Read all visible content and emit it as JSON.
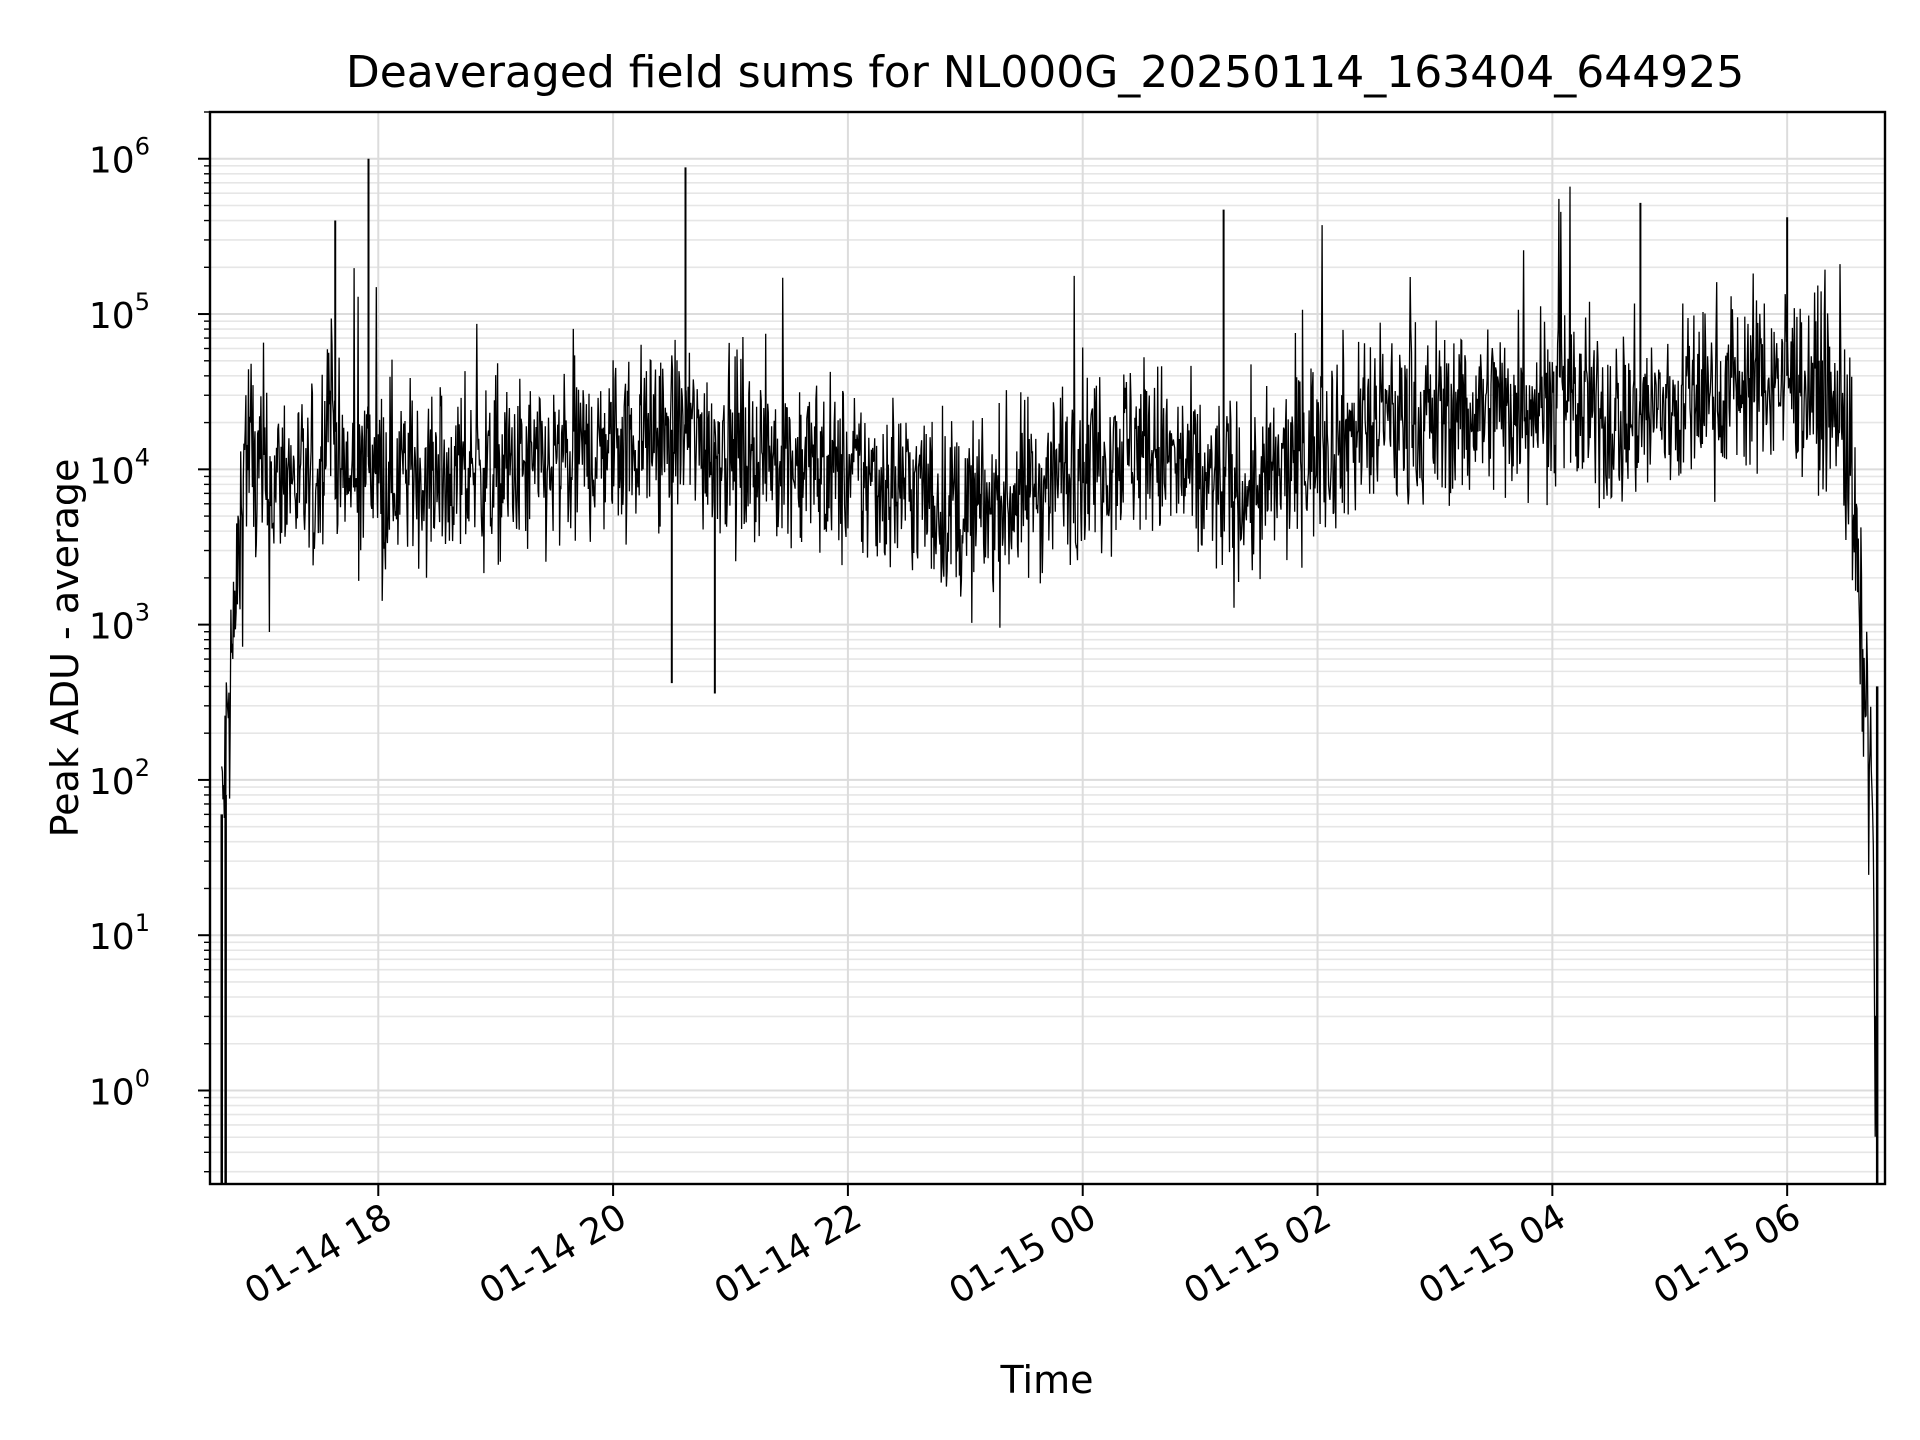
{
  "chart_data": {
    "type": "line",
    "title": "Deaveraged field sums for NL000G_20250114_163404_644925",
    "xlabel": "Time",
    "ylabel": "Peak ADU - average",
    "yscale": "log",
    "xlim": [
      "2025-01-14 16:34",
      "2025-01-15 06:50"
    ],
    "ylim": [
      0.25,
      2000000
    ],
    "grid": true,
    "line_color": "#000000",
    "x_ticks": [
      {
        "label": "01-14 18",
        "time": "2025-01-14 18:00"
      },
      {
        "label": "01-14 20",
        "time": "2025-01-14 20:00"
      },
      {
        "label": "01-14 22",
        "time": "2025-01-14 22:00"
      },
      {
        "label": "01-15 00",
        "time": "2025-01-15 00:00"
      },
      {
        "label": "01-15 02",
        "time": "2025-01-15 02:00"
      },
      {
        "label": "01-15 04",
        "time": "2025-01-15 04:00"
      },
      {
        "label": "01-15 06",
        "time": "2025-01-15 06:00"
      }
    ],
    "y_ticks": [
      {
        "base": "10",
        "exp": "0",
        "value": 1
      },
      {
        "base": "10",
        "exp": "1",
        "value": 10
      },
      {
        "base": "10",
        "exp": "2",
        "value": 100
      },
      {
        "base": "10",
        "exp": "3",
        "value": 1000
      },
      {
        "base": "10",
        "exp": "4",
        "value": 10000
      },
      {
        "base": "10",
        "exp": "5",
        "value": 100000
      },
      {
        "base": "10",
        "exp": "6",
        "value": 1000000
      }
    ],
    "series": [
      {
        "x": [
          "2025-01-14 16:40",
          "2025-01-14 16:43",
          "2025-01-14 16:46",
          "2025-01-14 16:49",
          "2025-01-14 16:52",
          "2025-01-14 16:55",
          "2025-01-14 16:58",
          "2025-01-14 17:01",
          "2025-01-14 17:04",
          "2025-01-14 17:08",
          "2025-01-14 17:12",
          "2025-01-14 17:16",
          "2025-01-14 17:20",
          "2025-01-14 17:25",
          "2025-01-14 17:30",
          "2025-01-14 17:35",
          "2025-01-14 17:40",
          "2025-01-14 17:45",
          "2025-01-14 17:50",
          "2025-01-14 17:55",
          "2025-01-14 18:00",
          "2025-01-14 18:30",
          "2025-01-14 19:00",
          "2025-01-14 19:30",
          "2025-01-14 20:00",
          "2025-01-14 20:30",
          "2025-01-14 21:00",
          "2025-01-14 21:30",
          "2025-01-14 22:00",
          "2025-01-14 22:30",
          "2025-01-14 23:00",
          "2025-01-14 23:30",
          "2025-01-15 00:00",
          "2025-01-15 00:30",
          "2025-01-15 01:00",
          "2025-01-15 01:30",
          "2025-01-15 02:00",
          "2025-01-15 02:30",
          "2025-01-15 03:00",
          "2025-01-15 03:30",
          "2025-01-15 04:00",
          "2025-01-15 04:30",
          "2025-01-15 05:00",
          "2025-01-15 05:30",
          "2025-01-15 06:00",
          "2025-01-15 06:20",
          "2025-01-15 06:30",
          "2025-01-15 06:35",
          "2025-01-15 06:40",
          "2025-01-15 06:43",
          "2025-01-15 06:46"
        ],
        "y": [
          50,
          200,
          800,
          3000,
          15000,
          12000,
          8000,
          9000,
          7000,
          8000,
          10000,
          9000,
          8000,
          7000,
          9000,
          40000,
          10000,
          8000,
          9000,
          12000,
          10000,
          9000,
          9500,
          10000,
          15000,
          18000,
          14000,
          12000,
          9000,
          8000,
          5000,
          7000,
          12000,
          15000,
          8000,
          7000,
          15000,
          20000,
          22000,
          25000,
          30000,
          20000,
          25000,
          35000,
          40000,
          30000,
          20000,
          3000,
          300,
          100,
          0.3
        ],
        "spikes": [
          {
            "x": "2025-01-14 17:38",
            "y": 400000
          },
          {
            "x": "2025-01-14 17:55",
            "y": 1000000
          },
          {
            "x": "2025-01-14 20:37",
            "y": 880000
          },
          {
            "x": "2025-01-15 01:12",
            "y": 470000
          },
          {
            "x": "2025-01-15 04:45",
            "y": 520000
          },
          {
            "x": "2025-01-15 06:00",
            "y": 420000
          },
          {
            "x": "2025-01-14 20:30",
            "y": 420
          },
          {
            "x": "2025-01-14 20:52",
            "y": 360
          }
        ]
      }
    ]
  }
}
